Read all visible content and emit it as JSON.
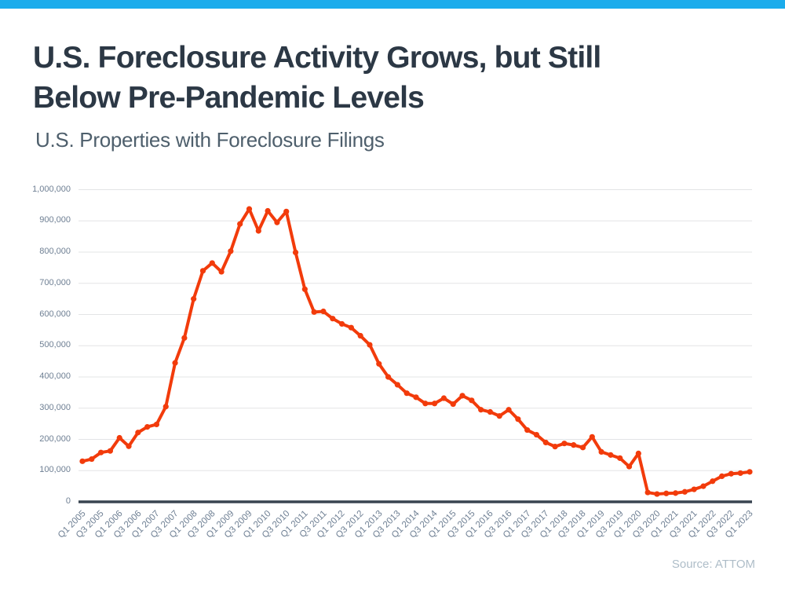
{
  "page": {
    "title_lines": [
      "U.S. Foreclosure Activity Grows, but Still",
      "Below Pre-Pandemic Levels"
    ],
    "subtitle": "U.S. Properties with Foreclosure Filings",
    "source": "Source: ATTOM",
    "accent_bar_color": "#1BACEC"
  },
  "chart_data": {
    "type": "line",
    "title": "U.S. Properties with Foreclosure Filings",
    "xlabel": "",
    "ylabel": "",
    "ylim": [
      0,
      1000000
    ],
    "grid": "horizontal",
    "legend": "none",
    "colors": {
      "line": "#F23B0B",
      "grid": "#E3E4E6",
      "axis": "#394450",
      "tick_text": "#6E7F93"
    },
    "y_tick_labels": [
      "0",
      "100,000",
      "200,000",
      "300,000",
      "400,000",
      "500,000",
      "600,000",
      "700,000",
      "800,000",
      "900,000",
      "1,000,000"
    ],
    "x_tick_labels": [
      "Q1 2005",
      "Q3 2005",
      "Q1 2006",
      "Q3 2006",
      "Q1 2007",
      "Q3 2007",
      "Q1 2008",
      "Q3 2008",
      "Q1 2009",
      "Q3 2009",
      "Q1 2010",
      "Q3 2010",
      "Q1 2011",
      "Q3 2011",
      "Q1 2012",
      "Q3 2012",
      "Q1 2013",
      "Q3 2013",
      "Q1 2014",
      "Q3 2014",
      "Q1 2015",
      "Q3 2015",
      "Q1 2016",
      "Q3 2016",
      "Q1 2017",
      "Q3 2017",
      "Q1 2018",
      "Q3 2018",
      "Q1 2019",
      "Q3 2019",
      "Q1 2020",
      "Q3 2020",
      "Q1 2021",
      "Q3 2021",
      "Q1 2022",
      "Q3 2022",
      "Q1 2023"
    ],
    "series": [
      {
        "name": "U.S. Properties with Foreclosure Filings",
        "frequency": "quarterly",
        "x_start": "Q1 2005",
        "x_end": "Q1 2023",
        "values": [
          130000,
          137000,
          158000,
          163000,
          205000,
          178000,
          222000,
          240000,
          248000,
          305000,
          445000,
          525000,
          650000,
          740000,
          765000,
          737000,
          803000,
          890000,
          938000,
          868000,
          932000,
          895000,
          930000,
          799000,
          681000,
          608000,
          610000,
          587000,
          570000,
          558000,
          532000,
          503000,
          442000,
          400000,
          375000,
          348000,
          335000,
          315000,
          315000,
          332000,
          313000,
          340000,
          325000,
          295000,
          288000,
          275000,
          295000,
          265000,
          230000,
          215000,
          190000,
          177000,
          187000,
          182000,
          174000,
          208000,
          160000,
          150000,
          140000,
          113000,
          155000,
          30000,
          25000,
          27000,
          28000,
          32000,
          40000,
          50000,
          66000,
          82000,
          90000,
          92000,
          96000
        ]
      }
    ]
  }
}
